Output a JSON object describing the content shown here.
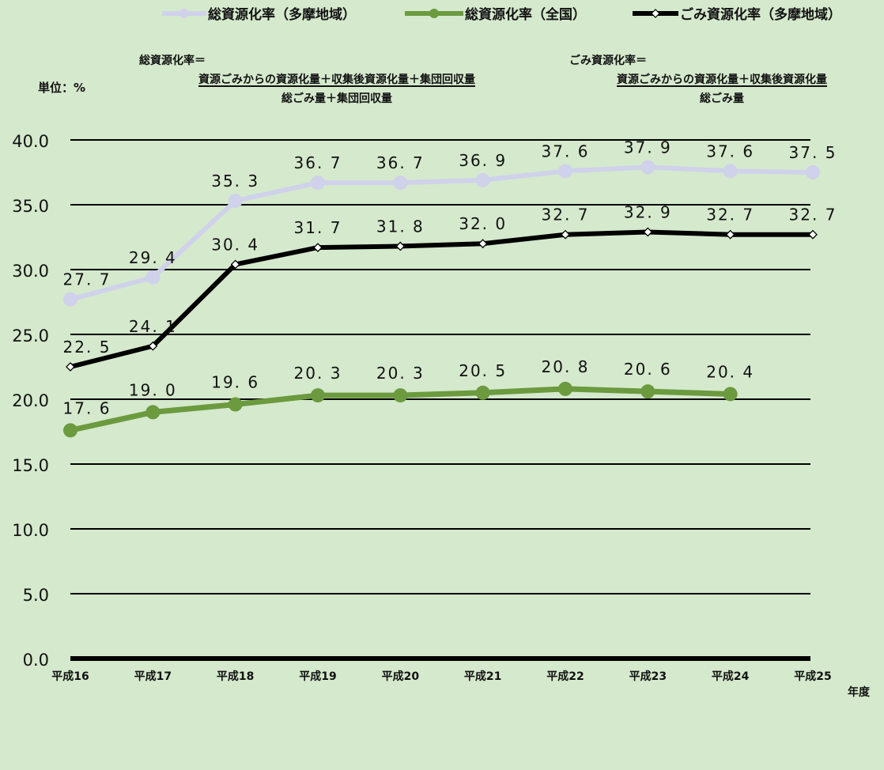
{
  "unit_label": "単位：%",
  "xaxis_suffix": "年度",
  "formulas": {
    "total": {
      "title": "総資源化率＝",
      "numerator": "資源ごみからの資源化量＋収集後資源化量＋集団回収量",
      "denominator": "総ごみ量＋集団回収量"
    },
    "garbage": {
      "title": "ごみ資源化率＝",
      "numerator": "資源ごみからの資源化量＋収集後資源化量",
      "denominator": "総ごみ量"
    }
  },
  "chart_data": {
    "type": "line",
    "title": "",
    "xlabel": "年度",
    "ylabel": "単位：%",
    "ylim": [
      0,
      40
    ],
    "yticks": [
      "0.0",
      "5.0",
      "10.0",
      "15.0",
      "20.0",
      "25.0",
      "30.0",
      "35.0",
      "40.0"
    ],
    "grid": true,
    "legend_position": "top",
    "categories": [
      "平成16",
      "平成17",
      "平成18",
      "平成19",
      "平成20",
      "平成21",
      "平成22",
      "平成23",
      "平成24",
      "平成25"
    ],
    "series": [
      {
        "name": "総資源化率（多摩地域）",
        "color": "#cfd2ea",
        "marker": "circle",
        "values": [
          27.7,
          29.4,
          35.3,
          36.7,
          36.7,
          36.9,
          37.6,
          37.9,
          37.6,
          37.5
        ],
        "labels": [
          "27.7",
          "29.4",
          "35.3",
          "36.7",
          "36.7",
          "36.9",
          "37.6",
          "37.9",
          "37.6",
          "37.5"
        ]
      },
      {
        "name": "総資源化率（全国）",
        "color": "#6b9a3f",
        "marker": "circle",
        "values": [
          17.6,
          19.0,
          19.6,
          20.3,
          20.3,
          20.5,
          20.8,
          20.6,
          20.4,
          null
        ],
        "labels": [
          "17.6",
          "19.0",
          "19.6",
          "20.3",
          "20.3",
          "20.5",
          "20.8",
          "20.6",
          "20.4",
          null
        ]
      },
      {
        "name": "ごみ資源化率（多摩地域）",
        "color": "#000000",
        "marker": "diamond",
        "values": [
          22.5,
          24.1,
          30.4,
          31.7,
          31.8,
          32.0,
          32.7,
          32.9,
          32.7,
          32.7
        ],
        "labels": [
          "22.5",
          "24.1",
          "30.4",
          "31.7",
          "31.8",
          "32.0",
          "32.7",
          "32.9",
          "32.7",
          "32.7"
        ]
      }
    ]
  }
}
